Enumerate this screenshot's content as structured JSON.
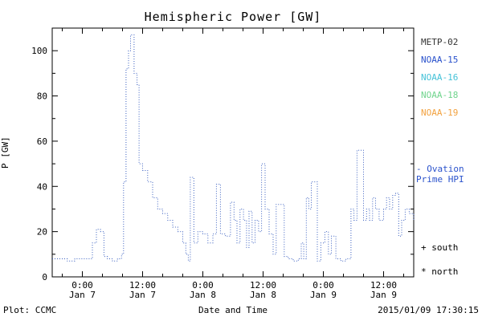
{
  "title": "Hemispheric Power [GW]",
  "footer": {
    "plot_source": "Plot: CCMC",
    "timestamp": "2015/01/09 17:30:15"
  },
  "legend": {
    "satellites": [
      {
        "label": "METP-02",
        "color": "#333333"
      },
      {
        "label": "NOAA-15",
        "color": "#2a52cc"
      },
      {
        "label": "NOAA-16",
        "color": "#45c2d8"
      },
      {
        "label": "NOAA-18",
        "color": "#6fd48c"
      },
      {
        "label": "NOAA-19",
        "color": "#f2a240"
      }
    ],
    "ovation": {
      "lines": [
        "- Ovation",
        "Prime HPI"
      ],
      "color": "#2a52cc"
    },
    "markers": [
      {
        "symbol": "+",
        "label": "south"
      },
      {
        "symbol": "*",
        "label": "north"
      }
    ]
  },
  "chart_data": {
    "type": "line",
    "style": "dotted-step",
    "line_color": "#3a5fc0",
    "title": "Hemispheric Power [GW]",
    "xlabel": "Date and Time",
    "ylabel": "P [GW]",
    "ylim": [
      0,
      110
    ],
    "yticks": [
      0,
      20,
      40,
      60,
      80,
      100
    ],
    "xlim_hours": [
      0,
      72
    ],
    "xticks": [
      {
        "h": 6,
        "time": "0:00",
        "date": "Jan 7"
      },
      {
        "h": 18,
        "time": "12:00",
        "date": "Jan 7"
      },
      {
        "h": 30,
        "time": "0:00",
        "date": "Jan 8"
      },
      {
        "h": 42,
        "time": "12:00",
        "date": "Jan 8"
      },
      {
        "h": 54,
        "time": "0:00",
        "date": "Jan 9"
      },
      {
        "h": 66,
        "time": "12:00",
        "date": "Jan 9"
      }
    ],
    "legend_position": "right",
    "grid": false,
    "series": [
      {
        "name": "Ovation Prime HPI",
        "points_hours_gw": [
          [
            0,
            8
          ],
          [
            1.5,
            8
          ],
          [
            3,
            7
          ],
          [
            4.5,
            8
          ],
          [
            6,
            8
          ],
          [
            7.5,
            8
          ],
          [
            8,
            15
          ],
          [
            8.8,
            21
          ],
          [
            9.6,
            20
          ],
          [
            10.3,
            9
          ],
          [
            11,
            8
          ],
          [
            12,
            7
          ],
          [
            13,
            8
          ],
          [
            13.8,
            10
          ],
          [
            14.2,
            42
          ],
          [
            14.7,
            92
          ],
          [
            15.2,
            100
          ],
          [
            15.6,
            107
          ],
          [
            16.3,
            90
          ],
          [
            16.9,
            85
          ],
          [
            17.3,
            50
          ],
          [
            18,
            47
          ],
          [
            19,
            42
          ],
          [
            20,
            35
          ],
          [
            21,
            30
          ],
          [
            22,
            28
          ],
          [
            23,
            25
          ],
          [
            24,
            22
          ],
          [
            25,
            20
          ],
          [
            26,
            15
          ],
          [
            26.6,
            10
          ],
          [
            27.1,
            7
          ],
          [
            27.5,
            44
          ],
          [
            28.2,
            15
          ],
          [
            29,
            20
          ],
          [
            30,
            19
          ],
          [
            31,
            15
          ],
          [
            32,
            19
          ],
          [
            32.7,
            41
          ],
          [
            33.5,
            19
          ],
          [
            34.5,
            18
          ],
          [
            35.5,
            33
          ],
          [
            36.2,
            25
          ],
          [
            36.8,
            15
          ],
          [
            37.4,
            30
          ],
          [
            38.1,
            25
          ],
          [
            38.7,
            13
          ],
          [
            39.2,
            29
          ],
          [
            39.8,
            15
          ],
          [
            40.4,
            25
          ],
          [
            41.1,
            20
          ],
          [
            41.7,
            50
          ],
          [
            42.4,
            30
          ],
          [
            43.2,
            19
          ],
          [
            44,
            10
          ],
          [
            44.6,
            32
          ],
          [
            45.4,
            32
          ],
          [
            46.2,
            9
          ],
          [
            47,
            8
          ],
          [
            48,
            7
          ],
          [
            49,
            8
          ],
          [
            49.6,
            15
          ],
          [
            50.1,
            8
          ],
          [
            50.6,
            35
          ],
          [
            51.1,
            30
          ],
          [
            51.6,
            42
          ],
          [
            52.2,
            42
          ],
          [
            52.8,
            7
          ],
          [
            53.5,
            15
          ],
          [
            54.3,
            20
          ],
          [
            55,
            10
          ],
          [
            55.6,
            18
          ],
          [
            56.5,
            8
          ],
          [
            57.5,
            7
          ],
          [
            58.5,
            8
          ],
          [
            59.5,
            30
          ],
          [
            60.1,
            25
          ],
          [
            60.7,
            56
          ],
          [
            61.4,
            56
          ],
          [
            62,
            25
          ],
          [
            62.6,
            30
          ],
          [
            63.2,
            25
          ],
          [
            63.8,
            35
          ],
          [
            64.4,
            30
          ],
          [
            65.1,
            25
          ],
          [
            66,
            30
          ],
          [
            66.6,
            35
          ],
          [
            67.2,
            30
          ],
          [
            67.8,
            36
          ],
          [
            68.4,
            37
          ],
          [
            69,
            18
          ],
          [
            69.6,
            25
          ],
          [
            70.3,
            30
          ],
          [
            71.1,
            28
          ],
          [
            72,
            25
          ]
        ]
      }
    ]
  }
}
